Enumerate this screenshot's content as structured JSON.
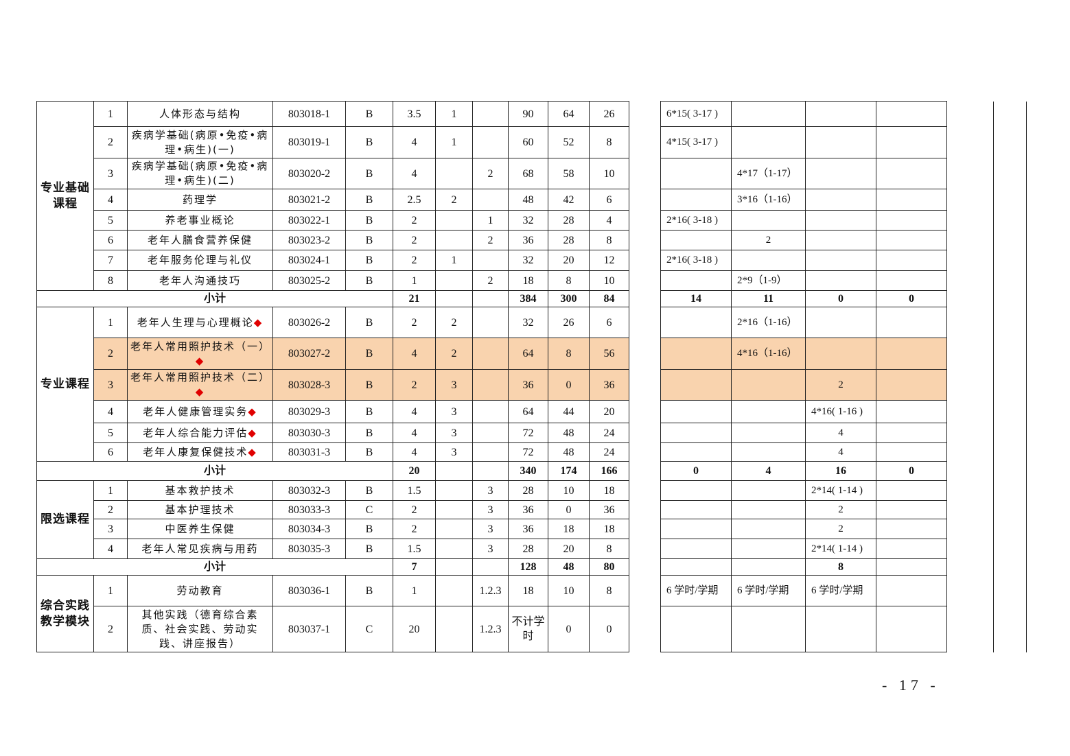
{
  "highlight_color": "#f9d3ae",
  "marker_icon": "red-diamond",
  "marker_color": "#e00000",
  "groups": [
    {
      "category": "专业基础课程",
      "rows": [
        {
          "no": "1",
          "name": "人体形态与结构",
          "code": "803018-1",
          "type": "B",
          "credits": "3.5",
          "exam": "1",
          "check": "",
          "total": "90",
          "theory": "64",
          "practice": "26",
          "s1": "6*15( 3-17 )",
          "s2": "",
          "s3": "",
          "s4": ""
        },
        {
          "no": "2",
          "name": "疾病学基础(病原•免疫•病理•病生)(一)",
          "code": "803019-1",
          "type": "B",
          "credits": "4",
          "exam": "1",
          "check": "",
          "total": "60",
          "theory": "52",
          "practice": "8",
          "s1": "4*15( 3-17 )",
          "s2": "",
          "s3": "",
          "s4": ""
        },
        {
          "no": "3",
          "name": "疾病学基础(病原•免疫•病理•病生)(二)",
          "code": "803020-2",
          "type": "B",
          "credits": "4",
          "exam": "",
          "check": "2",
          "total": "68",
          "theory": "58",
          "practice": "10",
          "s1": "",
          "s2": "4*17（1-17）",
          "s3": "",
          "s4": ""
        },
        {
          "no": "4",
          "name": "药理学",
          "code": "803021-2",
          "type": "B",
          "credits": "2.5",
          "exam": "2",
          "check": "",
          "total": "48",
          "theory": "42",
          "practice": "6",
          "s1": "",
          "s2": "3*16（1-16）",
          "s3": "",
          "s4": ""
        },
        {
          "no": "5",
          "name": "养老事业概论",
          "code": "803022-1",
          "type": "B",
          "credits": "2",
          "exam": "",
          "check": "1",
          "total": "32",
          "theory": "28",
          "practice": "4",
          "s1": "2*16( 3-18 )",
          "s2": "",
          "s3": "",
          "s4": ""
        },
        {
          "no": "6",
          "name": "老年人膳食营养保健",
          "code": "803023-2",
          "type": "B",
          "credits": "2",
          "exam": "",
          "check": "2",
          "total": "36",
          "theory": "28",
          "practice": "8",
          "s1": "",
          "s2": "2",
          "s3": "",
          "s4": ""
        },
        {
          "no": "7",
          "name": "老年服务伦理与礼仪",
          "code": "803024-1",
          "type": "B",
          "credits": "2",
          "exam": "1",
          "check": "",
          "total": "32",
          "theory": "20",
          "practice": "12",
          "s1": "2*16( 3-18 )",
          "s2": "",
          "s3": "",
          "s4": ""
        },
        {
          "no": "8",
          "name": "老年人沟通技巧",
          "code": "803025-2",
          "type": "B",
          "credits": "1",
          "exam": "",
          "check": "2",
          "total": "18",
          "theory": "8",
          "practice": "10",
          "s1": "",
          "s2": "2*9（1-9）",
          "s3": "",
          "s4": ""
        }
      ],
      "subtotal": {
        "label": "小计",
        "credits": "21",
        "total": "384",
        "theory": "300",
        "practice": "84",
        "s1": "14",
        "s2": "11",
        "s3": "0",
        "s4": "0"
      }
    },
    {
      "category": "专业课程",
      "rows": [
        {
          "no": "1",
          "name": "老年人生理与心理概论",
          "diamond": true,
          "code": "803026-2",
          "type": "B",
          "credits": "2",
          "exam": "2",
          "check": "",
          "total": "32",
          "theory": "26",
          "practice": "6",
          "s1": "",
          "s2": "2*16（1-16）",
          "s3": "",
          "s4": ""
        },
        {
          "no": "2",
          "name": "老年人常用照护技术（一）",
          "diamond": true,
          "highlight": true,
          "code": "803027-2",
          "type": "B",
          "credits": "4",
          "exam": "2",
          "check": "",
          "total": "64",
          "theory": "8",
          "practice": "56",
          "s1": "",
          "s2": "4*16（1-16）",
          "s3": "",
          "s4": ""
        },
        {
          "no": "3",
          "name": "老年人常用照护技术（二）",
          "diamond": true,
          "highlight": true,
          "code": "803028-3",
          "type": "B",
          "credits": "2",
          "exam": "3",
          "check": "",
          "total": "36",
          "theory": "0",
          "practice": "36",
          "s1": "",
          "s2": "",
          "s3": "2",
          "s4": ""
        },
        {
          "no": "4",
          "name": "老年人健康管理实务",
          "diamond": true,
          "code": "803029-3",
          "type": "B",
          "credits": "4",
          "exam": "3",
          "check": "",
          "total": "64",
          "theory": "44",
          "practice": "20",
          "s1": "",
          "s2": "",
          "s3": "4*16( 1-16 )",
          "s4": ""
        },
        {
          "no": "5",
          "name": "老年人综合能力评估",
          "diamond": true,
          "code": "803030-3",
          "type": "B",
          "credits": "4",
          "exam": "3",
          "check": "",
          "total": "72",
          "theory": "48",
          "practice": "24",
          "s1": "",
          "s2": "",
          "s3": "4",
          "s4": ""
        },
        {
          "no": "6",
          "name": "老年人康复保健技术",
          "diamond": true,
          "code": "803031-3",
          "type": "B",
          "credits": "4",
          "exam": "3",
          "check": "",
          "total": "72",
          "theory": "48",
          "practice": "24",
          "s1": "",
          "s2": "",
          "s3": "4",
          "s4": ""
        }
      ],
      "subtotal": {
        "label": "小计",
        "credits": "20",
        "total": "340",
        "theory": "174",
        "practice": "166",
        "s1": "0",
        "s2": "4",
        "s3": "16",
        "s4": "0"
      }
    },
    {
      "category": "限选课程",
      "rows": [
        {
          "no": "1",
          "name": "基本救护技术",
          "code": "803032-3",
          "type": "B",
          "credits": "1.5",
          "exam": "",
          "check": "3",
          "total": "28",
          "theory": "10",
          "practice": "18",
          "s1": "",
          "s2": "",
          "s3": "2*14( 1-14 )",
          "s4": ""
        },
        {
          "no": "2",
          "name": "基本护理技术",
          "code": "803033-3",
          "type": "C",
          "credits": "2",
          "exam": "",
          "check": "3",
          "total": "36",
          "theory": "0",
          "practice": "36",
          "s1": "",
          "s2": "",
          "s3": "2",
          "s4": ""
        },
        {
          "no": "3",
          "name": "中医养生保健",
          "code": "803034-3",
          "type": "B",
          "credits": "2",
          "exam": "",
          "check": "3",
          "total": "36",
          "theory": "18",
          "practice": "18",
          "s1": "",
          "s2": "",
          "s3": "2",
          "s4": ""
        },
        {
          "no": "4",
          "name": "老年人常见疾病与用药",
          "code": "803035-3",
          "type": "B",
          "credits": "1.5",
          "exam": "",
          "check": "3",
          "total": "28",
          "theory": "20",
          "practice": "8",
          "s1": "",
          "s2": "",
          "s3": "2*14( 1-14 )",
          "s4": ""
        }
      ],
      "subtotal": {
        "label": "小计",
        "credits": "7",
        "total": "128",
        "theory": "48",
        "practice": "80",
        "s1": "",
        "s2": "",
        "s3": "8",
        "s4": ""
      }
    },
    {
      "category": "综合实践教学模块",
      "rows": [
        {
          "no": "1",
          "name": "劳动教育",
          "code": "803036-1",
          "type": "B",
          "credits": "1",
          "exam": "",
          "check": "1.2.3",
          "total": "18",
          "theory": "10",
          "practice": "8",
          "s1": "6 学时/学期",
          "s2": "6 学时/学期",
          "s3": "6 学时/学期",
          "s4": ""
        },
        {
          "no": "2",
          "name": "其他实践（德育综合素质、社会实践、劳动实践、讲座报告）",
          "code": "803037-1",
          "type": "C",
          "credits": "20",
          "exam": "",
          "check": "1.2.3",
          "total": "不计学时",
          "theory": "0",
          "practice": "0",
          "s1": "",
          "s2": "",
          "s3": "",
          "s4": ""
        }
      ]
    }
  ],
  "page_number": "- 17 -"
}
